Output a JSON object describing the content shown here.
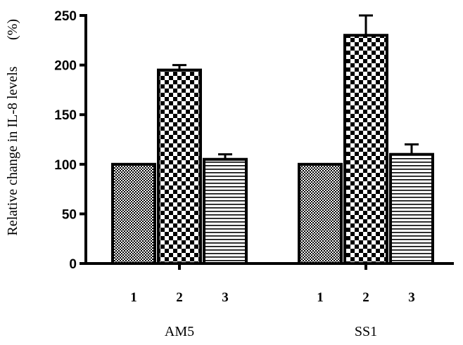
{
  "chart_data": {
    "type": "bar",
    "ylabel": "Relative change in IL-8 levels",
    "ylabel_unit": "(%)",
    "ylim": [
      0,
      250
    ],
    "yticks": [
      0,
      50,
      100,
      150,
      200,
      250
    ],
    "grid": false,
    "groups": [
      {
        "name": "AM5",
        "categories": [
          "1",
          "2",
          "3"
        ],
        "values": [
          100,
          195,
          105
        ],
        "errors": [
          0,
          5,
          5
        ]
      },
      {
        "name": "SS1",
        "categories": [
          "1",
          "2",
          "3"
        ],
        "values": [
          100,
          230,
          110
        ],
        "errors": [
          0,
          20,
          10
        ]
      }
    ],
    "bar_patterns": [
      "fine-checker",
      "coarse-checker",
      "horizontal-lines"
    ],
    "colors": {
      "ink": "#000000",
      "background": "#ffffff"
    }
  }
}
